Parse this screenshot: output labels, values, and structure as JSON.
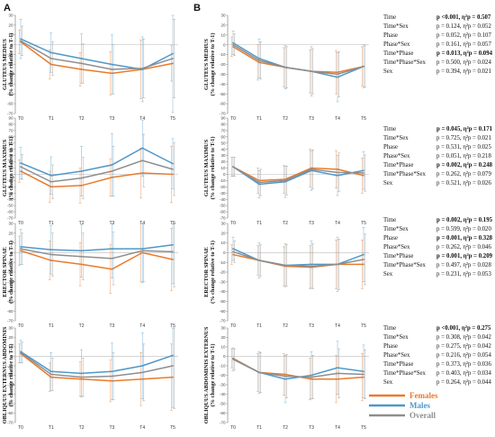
{
  "figure": {
    "panel_letters": [
      "A",
      "B"
    ],
    "colors": {
      "Females": "#E97B2C",
      "Males": "#4E98C9",
      "Overall": "#8E8E8E",
      "zero_line": "#C8C8C8",
      "axis": "#6F6F6F",
      "bold_text": "#111111"
    },
    "legend": [
      {
        "label": "Females",
        "color": "#E97B2C"
      },
      {
        "label": "Males",
        "color": "#4E98C9"
      },
      {
        "label": "Overall",
        "color": "#8E8E8E"
      }
    ]
  },
  "chart_data": [
    {
      "type": "line",
      "panel": "A",
      "row": 0,
      "ylabel": [
        "GLUTEUS MEDIUS",
        "(% change relative to T-1)"
      ],
      "categories": [
        "T0",
        "T1",
        "T2",
        "T3",
        "T4",
        "T5"
      ],
      "ylim": [
        -70,
        30
      ],
      "yticks": [
        30,
        20,
        10,
        0,
        -10,
        -20,
        -30,
        -40,
        -50,
        -60,
        -70
      ],
      "series": [
        {
          "name": "Females",
          "values": [
            3,
            -20,
            -25,
            -29,
            -25,
            -19
          ],
          "error": [
            12,
            15,
            17,
            22,
            30,
            18
          ]
        },
        {
          "name": "Males",
          "values": [
            6,
            -8,
            -14,
            -20,
            -25,
            -9
          ],
          "error": [
            20,
            20,
            25,
            30,
            33,
            60
          ]
        },
        {
          "name": "Overall",
          "values": [
            4,
            -14,
            -19,
            -25,
            -24,
            -14
          ],
          "error": [
            15,
            17,
            20,
            25,
            30,
            40
          ]
        }
      ]
    },
    {
      "type": "line",
      "panel": "A",
      "row": 1,
      "ylabel": [
        "GLUTEUS MAXIMUS",
        "(% change relative to T-1)"
      ],
      "categories": [
        "T0",
        "T1",
        "T2",
        "T3",
        "T4",
        "T5"
      ],
      "ylim": [
        -70,
        90
      ],
      "yticks": [
        90,
        80,
        70,
        60,
        50,
        40,
        30,
        20,
        10,
        0,
        -10,
        -20,
        -30,
        -40,
        -50,
        -60,
        -70
      ],
      "series": [
        {
          "name": "Females",
          "values": [
            5,
            -20,
            -18,
            -5,
            2,
            0
          ],
          "error": [
            18,
            25,
            28,
            30,
            40,
            45
          ]
        },
        {
          "name": "Males",
          "values": [
            18,
            -2,
            5,
            15,
            42,
            17
          ],
          "error": [
            25,
            30,
            40,
            50,
            45,
            40
          ]
        },
        {
          "name": "Overall",
          "values": [
            12,
            -12,
            -6,
            5,
            22,
            8
          ],
          "error": [
            20,
            27,
            33,
            40,
            42,
            42
          ]
        }
      ]
    },
    {
      "type": "line",
      "panel": "A",
      "row": 2,
      "ylabel": [
        "ERECTOR SPINAE",
        "(% change relative to T-1)"
      ],
      "categories": [
        "T0",
        "T1",
        "T2",
        "T3",
        "T4",
        "T5"
      ],
      "ylim": [
        -70,
        30
      ],
      "yticks": [
        30,
        20,
        10,
        0,
        -10,
        -20,
        -30,
        -40,
        -50,
        -60,
        -70
      ],
      "series": [
        {
          "name": "Females",
          "values": [
            2,
            -8,
            -12,
            -17,
            0,
            -7
          ],
          "error": [
            15,
            20,
            22,
            25,
            30,
            32
          ]
        },
        {
          "name": "Males",
          "values": [
            6,
            3,
            2,
            4,
            4,
            8
          ],
          "error": [
            18,
            25,
            27,
            30,
            35,
            40
          ]
        },
        {
          "name": "Overall",
          "values": [
            4,
            -2,
            -4,
            -6,
            2,
            1
          ],
          "error": [
            16,
            22,
            24,
            27,
            32,
            36
          ]
        }
      ]
    },
    {
      "type": "line",
      "panel": "A",
      "row": 3,
      "ylabel": [
        "OBLIQUUS EXTERNUS ABDOMINIS",
        "(% change relative to T-1)"
      ],
      "categories": [
        "T0",
        "T1",
        "T2",
        "T3",
        "T4",
        "T5"
      ],
      "ylim": [
        -70,
        30
      ],
      "yticks": [
        30,
        20,
        10,
        0,
        -10,
        -20,
        -30,
        -40,
        -50,
        -60,
        -70
      ],
      "series": [
        {
          "name": "Females",
          "values": [
            3,
            -22,
            -24,
            -26,
            -24,
            -22
          ],
          "error": [
            10,
            15,
            18,
            22,
            28,
            35
          ]
        },
        {
          "name": "Males",
          "values": [
            5,
            -16,
            -18,
            -16,
            -10,
            1
          ],
          "error": [
            12,
            20,
            25,
            30,
            35,
            55
          ]
        },
        {
          "name": "Overall",
          "values": [
            4,
            -19,
            -22,
            -21,
            -17,
            -10
          ],
          "error": [
            11,
            17,
            20,
            25,
            30,
            45
          ]
        }
      ]
    },
    {
      "type": "line",
      "panel": "B",
      "row": 0,
      "ylabel": [
        "GLUTEUS MEDIUS",
        "(% change relative to T-1)"
      ],
      "categories": [
        "T0",
        "T1",
        "T2",
        "T3",
        "T4",
        "T5"
      ],
      "ylim": [
        -70,
        30
      ],
      "yticks": [
        30,
        20,
        10,
        0,
        -10,
        -20,
        -30,
        -40,
        -50,
        -60,
        -70
      ],
      "series": [
        {
          "name": "Females",
          "values": [
            -2,
            -18,
            -23,
            -27,
            -28,
            -22
          ],
          "error": [
            10,
            18,
            20,
            22,
            22,
            20
          ]
        },
        {
          "name": "Males",
          "values": [
            2,
            -14,
            -23,
            -27,
            -33,
            -22
          ],
          "error": [
            12,
            20,
            22,
            25,
            25,
            22
          ]
        },
        {
          "name": "Overall",
          "values": [
            0,
            -16,
            -23,
            -27,
            -30,
            -22
          ],
          "error": [
            11,
            19,
            21,
            23,
            23,
            21
          ]
        }
      ]
    },
    {
      "type": "line",
      "panel": "B",
      "row": 1,
      "ylabel": [
        "GLUTEUS MAXIMUS",
        "(% change relative to T-1)"
      ],
      "categories": [
        "T0",
        "T1",
        "T2",
        "T3",
        "T4",
        "T5"
      ],
      "ylim": [
        -70,
        90
      ],
      "yticks": [
        90,
        80,
        70,
        60,
        50,
        40,
        30,
        20,
        10,
        0,
        -10,
        -20,
        -30,
        -40,
        -50,
        -60,
        -70
      ],
      "series": [
        {
          "name": "Females",
          "values": [
            12,
            -10,
            -8,
            10,
            8,
            -2
          ],
          "error": [
            15,
            20,
            22,
            30,
            30,
            28
          ]
        },
        {
          "name": "Males",
          "values": [
            12,
            -16,
            -12,
            6,
            -2,
            6
          ],
          "error": [
            15,
            22,
            25,
            32,
            32,
            30
          ]
        },
        {
          "name": "Overall",
          "values": [
            12,
            -13,
            -10,
            8,
            3,
            2
          ],
          "error": [
            15,
            21,
            23,
            31,
            31,
            29
          ]
        }
      ]
    },
    {
      "type": "line",
      "panel": "B",
      "row": 2,
      "ylabel": [
        "ERECTOR SPINAE",
        "(% change relative to T-1)"
      ],
      "categories": [
        "T0",
        "T1",
        "T2",
        "T3",
        "T4",
        "T5"
      ],
      "ylim": [
        -70,
        30
      ],
      "yticks": [
        30,
        20,
        10,
        0,
        -10,
        -20,
        -30,
        -40,
        -50,
        -60,
        -70
      ],
      "series": [
        {
          "name": "Females",
          "values": [
            -2,
            -8,
            -14,
            -15,
            -12,
            -12
          ],
          "error": [
            10,
            15,
            20,
            22,
            25,
            25
          ]
        },
        {
          "name": "Males",
          "values": [
            4,
            -8,
            -13,
            -12,
            -12,
            -2
          ],
          "error": [
            12,
            18,
            22,
            24,
            28,
            28
          ]
        },
        {
          "name": "Overall",
          "values": [
            1,
            -8,
            -13,
            -14,
            -12,
            -7
          ],
          "error": [
            11,
            16,
            21,
            23,
            26,
            26
          ]
        }
      ]
    },
    {
      "type": "line",
      "panel": "B",
      "row": 3,
      "ylabel": [
        "OBLIQUUS ABDOMINIS EXTERNUS",
        "(% change relative to T-1)"
      ],
      "categories": [
        "T0",
        "T1",
        "T2",
        "T3",
        "T4",
        "T5"
      ],
      "ylim": [
        -70,
        30
      ],
      "yticks": [
        30,
        20,
        10,
        0,
        -10,
        -20,
        -30,
        -40,
        -50,
        -60,
        -70
      ],
      "series": [
        {
          "name": "Females",
          "values": [
            -2,
            -17,
            -19,
            -24,
            -24,
            -22
          ],
          "error": [
            10,
            20,
            22,
            22,
            25,
            25
          ]
        },
        {
          "name": "Males",
          "values": [
            -3,
            -17,
            -24,
            -20,
            -12,
            -16
          ],
          "error": [
            12,
            22,
            25,
            25,
            28,
            28
          ]
        },
        {
          "name": "Overall",
          "values": [
            -3,
            -17,
            -21,
            -22,
            -18,
            -19
          ],
          "error": [
            11,
            21,
            23,
            23,
            26,
            26
          ]
        }
      ]
    }
  ],
  "stats": [
    [
      {
        "label": "Time",
        "value": "p <0.001, η²p = 0.507",
        "bold": true
      },
      {
        "label": "Time*Sex",
        "value": "p = 0.124, η²p = 0.052",
        "bold": false
      },
      {
        "label": "Phase",
        "value": "p = 0.052, η²p = 0.107",
        "bold": false
      },
      {
        "label": "Phase*Sex",
        "value": "p = 0.161, η²p = 0.057",
        "bold": false
      },
      {
        "label": "Time*Phase",
        "value": "p = 0.013, η²p = 0.094",
        "bold": true
      },
      {
        "label": "Time*Phase*Sex",
        "value": "p = 0.500, η²p = 0.024",
        "bold": false
      },
      {
        "label": "Sex",
        "value": "p = 0.394, η²p = 0.021",
        "bold": false
      }
    ],
    [
      {
        "label": "Time",
        "value": "p = 0.045, η²p = 0.171",
        "bold": true
      },
      {
        "label": "Time*Sex",
        "value": "p = 0.725, η²p = 0.021",
        "bold": false
      },
      {
        "label": "Phase",
        "value": "p = 0.531, η²p = 0.025",
        "bold": false
      },
      {
        "label": "Phase*Sex",
        "value": "p = 0.051, η²p = 0.218",
        "bold": false
      },
      {
        "label": "Time*Phase",
        "value": "p = 0.002, η²p = 0.248",
        "bold": true
      },
      {
        "label": "Time*Phase*Sex",
        "value": "p = 0.262, η²p = 0.079",
        "bold": false
      },
      {
        "label": "Sex",
        "value": "p = 0.521, η²p = 0.026",
        "bold": false
      }
    ],
    [
      {
        "label": "Time",
        "value": "p = 0.002, η²p = 0.195",
        "bold": true
      },
      {
        "label": "Time*Sex",
        "value": "p = 0.599, η²p = 0.020",
        "bold": false
      },
      {
        "label": "Phase",
        "value": "p = 0.001, η²p = 0.328",
        "bold": true
      },
      {
        "label": "Phase*Sex",
        "value": "p = 0.262, η²p = 0.046",
        "bold": false
      },
      {
        "label": "Time*Phase",
        "value": "p = 0.001, η²p = 0.209",
        "bold": true
      },
      {
        "label": "Time*Phase*Sex",
        "value": "p = 0.497, η²p = 0.028",
        "bold": false
      },
      {
        "label": "Sex",
        "value": "p = 0.231, η²p = 0.053",
        "bold": false
      }
    ],
    [
      {
        "label": "Time",
        "value": "p <0.001, η²p = 0.275",
        "bold": true
      },
      {
        "label": "Time*Sex",
        "value": "p = 0.308, η²p = 0.042",
        "bold": false
      },
      {
        "label": "Phase",
        "value": "p = 0.275, η²p = 0.042",
        "bold": false
      },
      {
        "label": "Phase*Sex",
        "value": "p = 0.216, η²p = 0.054",
        "bold": false
      },
      {
        "label": "Time*Phase",
        "value": "p = 0.373, η²p = 0.036",
        "bold": false
      },
      {
        "label": "Time*Phase*Sex",
        "value": "p = 0.403, η²p = 0.034",
        "bold": false
      },
      {
        "label": "Sex",
        "value": "p = 0.264, η²p = 0.044",
        "bold": false
      }
    ]
  ]
}
